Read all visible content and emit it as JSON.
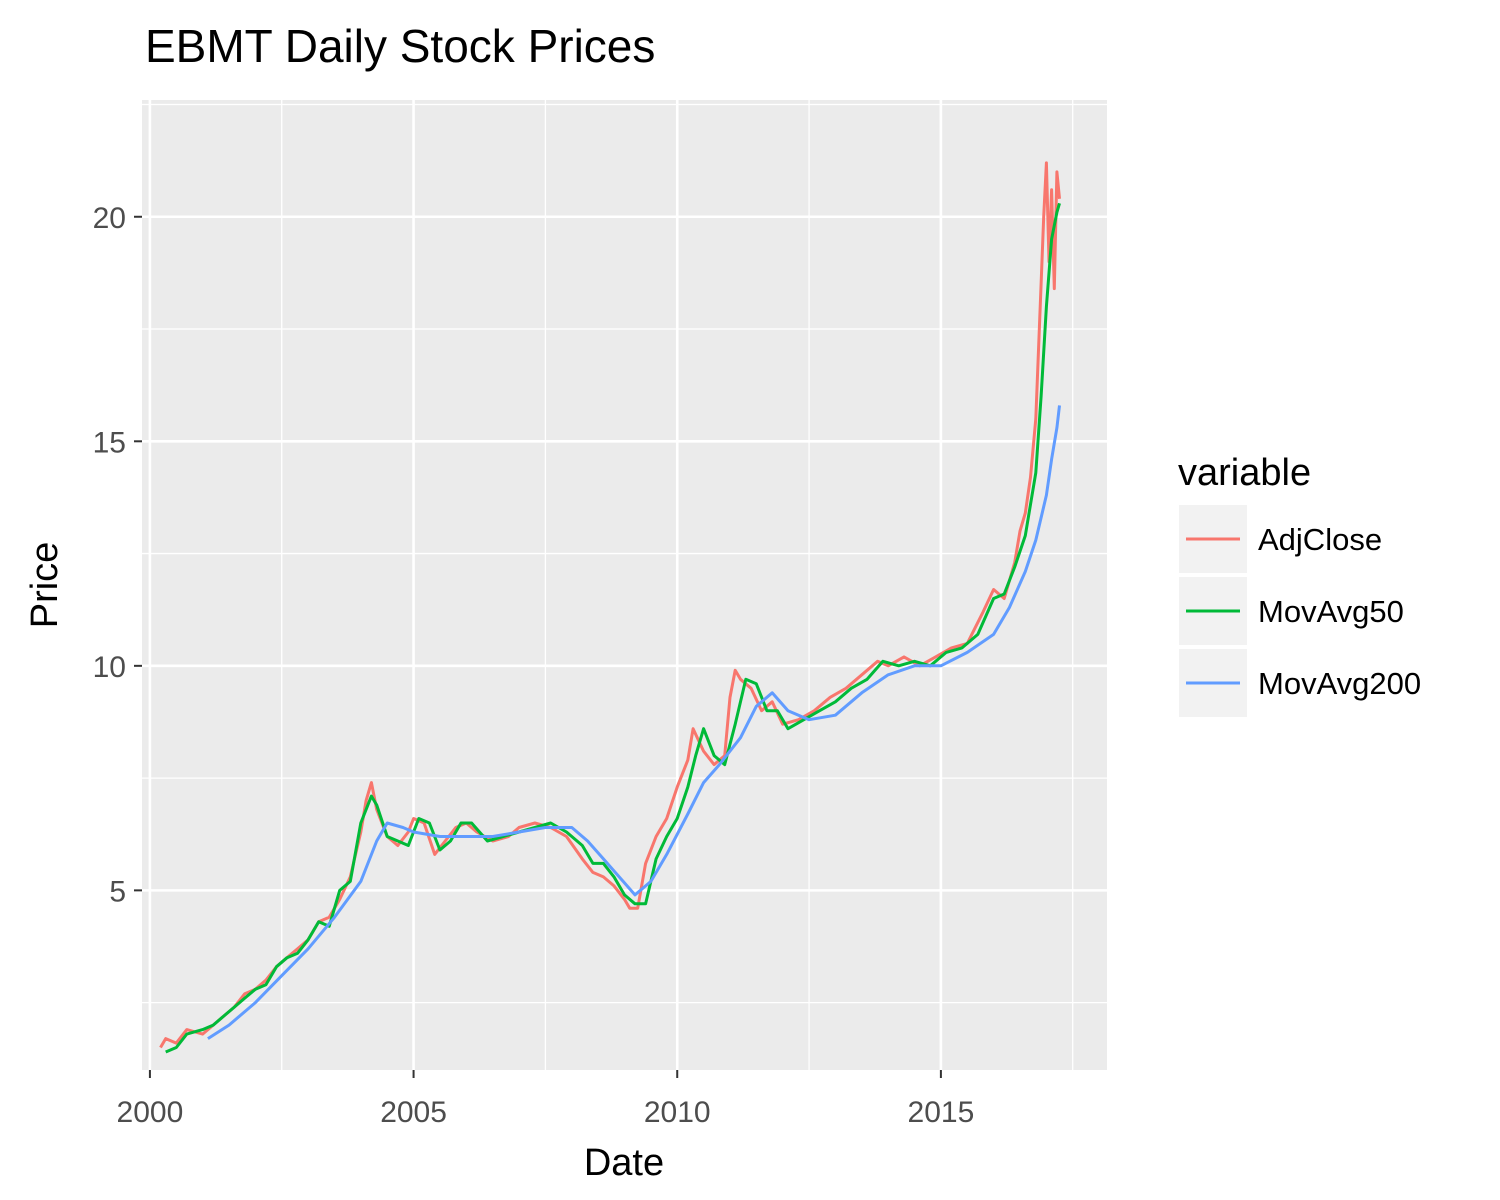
{
  "chart_data": {
    "type": "line",
    "title": "EBMT Daily Stock Prices",
    "xlabel": "Date",
    "ylabel": "Price",
    "xlim": [
      1999.85,
      2018.15
    ],
    "ylim": [
      1.0,
      22.6
    ],
    "x_ticks": [
      2000,
      2005,
      2010,
      2015
    ],
    "x_tick_labels": [
      "2000",
      "2005",
      "2010",
      "2015"
    ],
    "y_ticks": [
      5,
      10,
      15,
      20
    ],
    "y_tick_labels": [
      "5",
      "10",
      "15",
      "20"
    ],
    "grid": true,
    "legend": {
      "title": "variable",
      "position": "right"
    },
    "series": [
      {
        "name": "AdjClose",
        "color": "#F8766D",
        "x": [
          2000.2,
          2000.3,
          2000.5,
          2000.7,
          2001.0,
          2001.2,
          2001.4,
          2001.6,
          2001.8,
          2002.0,
          2002.2,
          2002.4,
          2002.6,
          2002.8,
          2003.0,
          2003.2,
          2003.4,
          2003.6,
          2003.8,
          2004.0,
          2004.1,
          2004.2,
          2004.3,
          2004.5,
          2004.7,
          2004.9,
          2005.0,
          2005.2,
          2005.4,
          2005.6,
          2005.8,
          2006.0,
          2006.2,
          2006.5,
          2006.8,
          2007.0,
          2007.3,
          2007.6,
          2007.9,
          2008.2,
          2008.4,
          2008.6,
          2008.8,
          2009.0,
          2009.1,
          2009.25,
          2009.4,
          2009.6,
          2009.8,
          2010.0,
          2010.2,
          2010.3,
          2010.5,
          2010.7,
          2010.9,
          2011.0,
          2011.1,
          2011.2,
          2011.4,
          2011.6,
          2011.8,
          2012.0,
          2012.3,
          2012.6,
          2012.9,
          2013.2,
          2013.5,
          2013.8,
          2014.0,
          2014.3,
          2014.6,
          2014.9,
          2015.2,
          2015.5,
          2015.8,
          2016.0,
          2016.2,
          2016.4,
          2016.5,
          2016.6,
          2016.7,
          2016.8,
          2016.9,
          2016.95,
          2017.0,
          2017.05,
          2017.1,
          2017.15,
          2017.2,
          2017.25
        ],
        "y": [
          1.5,
          1.7,
          1.6,
          1.9,
          1.8,
          2.0,
          2.2,
          2.4,
          2.7,
          2.8,
          3.0,
          3.3,
          3.5,
          3.7,
          3.9,
          4.3,
          4.4,
          4.8,
          5.3,
          6.3,
          7.0,
          7.4,
          6.8,
          6.2,
          6.0,
          6.3,
          6.6,
          6.5,
          5.8,
          6.1,
          6.4,
          6.5,
          6.3,
          6.1,
          6.2,
          6.4,
          6.5,
          6.4,
          6.2,
          5.7,
          5.4,
          5.3,
          5.1,
          4.8,
          4.6,
          4.6,
          5.6,
          6.2,
          6.6,
          7.3,
          7.9,
          8.6,
          8.1,
          7.8,
          8.0,
          9.3,
          9.9,
          9.7,
          9.5,
          9.0,
          9.2,
          8.7,
          8.8,
          9.0,
          9.3,
          9.5,
          9.8,
          10.1,
          10.0,
          10.2,
          10.0,
          10.2,
          10.4,
          10.5,
          11.2,
          11.7,
          11.5,
          12.3,
          13.0,
          13.4,
          14.2,
          15.5,
          18.5,
          20.0,
          21.2,
          19.0,
          20.6,
          18.4,
          21.0,
          20.4
        ]
      },
      {
        "name": "MovAvg50",
        "color": "#00BA38",
        "x": [
          2000.3,
          2000.5,
          2000.7,
          2001.0,
          2001.2,
          2001.4,
          2001.6,
          2001.8,
          2002.0,
          2002.2,
          2002.4,
          2002.6,
          2002.8,
          2003.0,
          2003.2,
          2003.4,
          2003.6,
          2003.8,
          2004.0,
          2004.2,
          2004.3,
          2004.5,
          2004.7,
          2004.9,
          2005.1,
          2005.3,
          2005.5,
          2005.7,
          2005.9,
          2006.1,
          2006.4,
          2006.7,
          2007.0,
          2007.3,
          2007.6,
          2007.9,
          2008.2,
          2008.4,
          2008.6,
          2008.8,
          2009.0,
          2009.2,
          2009.4,
          2009.6,
          2009.8,
          2010.0,
          2010.2,
          2010.35,
          2010.5,
          2010.7,
          2010.9,
          2011.1,
          2011.3,
          2011.5,
          2011.7,
          2011.9,
          2012.1,
          2012.4,
          2012.7,
          2013.0,
          2013.3,
          2013.6,
          2013.9,
          2014.2,
          2014.5,
          2014.8,
          2015.1,
          2015.4,
          2015.7,
          2016.0,
          2016.2,
          2016.4,
          2016.6,
          2016.8,
          2016.9,
          2017.0,
          2017.1,
          2017.2,
          2017.25
        ],
        "y": [
          1.4,
          1.5,
          1.8,
          1.9,
          2.0,
          2.2,
          2.4,
          2.6,
          2.8,
          2.9,
          3.3,
          3.5,
          3.6,
          3.9,
          4.3,
          4.2,
          5.0,
          5.2,
          6.5,
          7.1,
          6.9,
          6.2,
          6.1,
          6.0,
          6.6,
          6.5,
          5.9,
          6.1,
          6.5,
          6.5,
          6.1,
          6.2,
          6.3,
          6.4,
          6.5,
          6.3,
          6.0,
          5.6,
          5.6,
          5.3,
          4.9,
          4.7,
          4.7,
          5.7,
          6.2,
          6.6,
          7.3,
          8.0,
          8.6,
          8.0,
          7.8,
          8.7,
          9.7,
          9.6,
          9.0,
          9.0,
          8.6,
          8.8,
          9.0,
          9.2,
          9.5,
          9.7,
          10.1,
          10.0,
          10.1,
          10.0,
          10.3,
          10.4,
          10.7,
          11.5,
          11.6,
          12.2,
          12.9,
          14.3,
          16.0,
          18.0,
          19.5,
          20.1,
          20.3
        ]
      },
      {
        "name": "MovAvg200",
        "color": "#619CFF",
        "x": [
          2001.1,
          2001.5,
          2002.0,
          2002.5,
          2003.0,
          2003.5,
          2004.0,
          2004.3,
          2004.5,
          2004.8,
          2005.0,
          2005.5,
          2006.0,
          2006.5,
          2007.0,
          2007.5,
          2008.0,
          2008.3,
          2008.6,
          2008.9,
          2009.2,
          2009.5,
          2009.8,
          2010.2,
          2010.5,
          2010.8,
          2011.2,
          2011.5,
          2011.8,
          2012.1,
          2012.5,
          2013.0,
          2013.5,
          2014.0,
          2014.5,
          2015.0,
          2015.5,
          2016.0,
          2016.3,
          2016.6,
          2016.8,
          2017.0,
          2017.1,
          2017.2,
          2017.25
        ],
        "y": [
          1.7,
          2.0,
          2.5,
          3.1,
          3.7,
          4.4,
          5.2,
          6.1,
          6.5,
          6.4,
          6.3,
          6.2,
          6.2,
          6.2,
          6.3,
          6.4,
          6.4,
          6.1,
          5.7,
          5.3,
          4.9,
          5.2,
          5.8,
          6.7,
          7.4,
          7.8,
          8.4,
          9.1,
          9.4,
          9.0,
          8.8,
          8.9,
          9.4,
          9.8,
          10.0,
          10.0,
          10.3,
          10.7,
          11.3,
          12.1,
          12.8,
          13.8,
          14.6,
          15.3,
          15.8
        ]
      }
    ]
  }
}
